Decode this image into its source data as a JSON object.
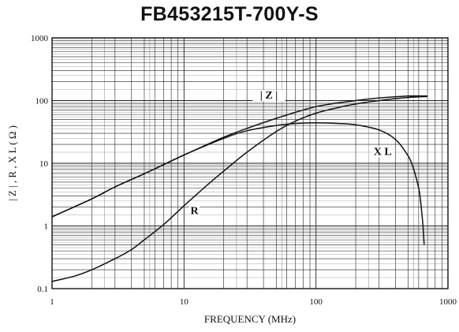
{
  "chart_data": {
    "type": "line",
    "title": "FB453215T-700Y-S",
    "xlabel": "FREQUENCY (MHz)",
    "ylabel": "| Z | , R , X L ( Ω )",
    "x_scale": "log",
    "y_scale": "log",
    "xlim": [
      1,
      1000
    ],
    "ylim": [
      0.1,
      1000
    ],
    "grid": true,
    "x_ticks": [
      "1",
      "10",
      "100",
      "1000"
    ],
    "y_ticks": [
      "0.1",
      "1",
      "10",
      "100",
      "1000"
    ],
    "series": [
      {
        "name": "|Z|",
        "x": [
          1,
          2,
          3,
          5,
          10,
          20,
          30,
          50,
          100,
          200,
          300,
          500,
          700
        ],
        "y": [
          1.4,
          2.7,
          4.2,
          6.8,
          13.5,
          26,
          36,
          52,
          80,
          100,
          110,
          118,
          118
        ]
      },
      {
        "name": "R",
        "x": [
          1,
          1.5,
          2,
          3,
          4,
          5,
          7,
          10,
          15,
          20,
          30,
          50,
          70,
          100,
          150,
          200,
          300,
          500,
          700
        ],
        "y": [
          0.13,
          0.16,
          0.2,
          0.3,
          0.42,
          0.6,
          1.05,
          2.1,
          4.5,
          7.5,
          15,
          32,
          47,
          63,
          78,
          88,
          100,
          112,
          116
        ]
      },
      {
        "name": "X L",
        "x": [
          1,
          2,
          3,
          5,
          10,
          20,
          30,
          50,
          70,
          100,
          150,
          200,
          300,
          400,
          500,
          550,
          600,
          620,
          640,
          650,
          660
        ],
        "y": [
          1.4,
          2.7,
          4.2,
          6.8,
          13.5,
          25,
          33,
          40,
          43,
          44,
          43,
          41,
          34,
          24,
          13,
          8,
          4,
          2.5,
          1.3,
          0.85,
          0.5
        ]
      }
    ],
    "annotations": [
      {
        "text": "| Z |",
        "x": 44,
        "y": 110
      },
      {
        "text": "R",
        "x": 12,
        "y": 1.6
      },
      {
        "text": "X L",
        "x": 320,
        "y": 14
      }
    ]
  }
}
